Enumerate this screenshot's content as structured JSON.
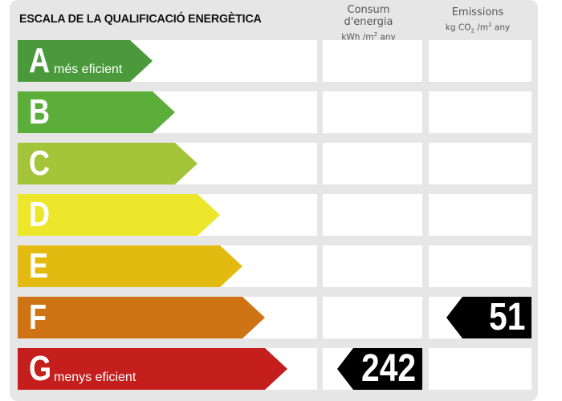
{
  "title": "ESCALA DE LA QUALIFICACIÓ ENERGÈTICA",
  "columns": {
    "consumption": {
      "label": "Consum d'energia",
      "unit_main": "kWh /m",
      "unit_sup": "2",
      "unit_tail": " any"
    },
    "emissions": {
      "label": "Emissions",
      "unit_main": "kg CO",
      "unit_sub": "2",
      "unit_mid": " /m",
      "unit_sup": "2",
      "unit_tail": " any"
    }
  },
  "bands": [
    {
      "letter": "A",
      "sublabel": "més eficient",
      "color": "#4a9a3c"
    },
    {
      "letter": "B",
      "sublabel": "",
      "color": "#5cae3b"
    },
    {
      "letter": "C",
      "sublabel": "",
      "color": "#a4c43a"
    },
    {
      "letter": "D",
      "sublabel": "",
      "color": "#ece72b"
    },
    {
      "letter": "E",
      "sublabel": "",
      "color": "#e3bb10"
    },
    {
      "letter": "F",
      "sublabel": "",
      "color": "#cf7414"
    },
    {
      "letter": "G",
      "sublabel": "menys eficient",
      "color": "#c41f1c"
    }
  ],
  "ratings": {
    "consumption": {
      "band": "G",
      "value": "242"
    },
    "emissions": {
      "band": "F",
      "value": "51"
    }
  }
}
